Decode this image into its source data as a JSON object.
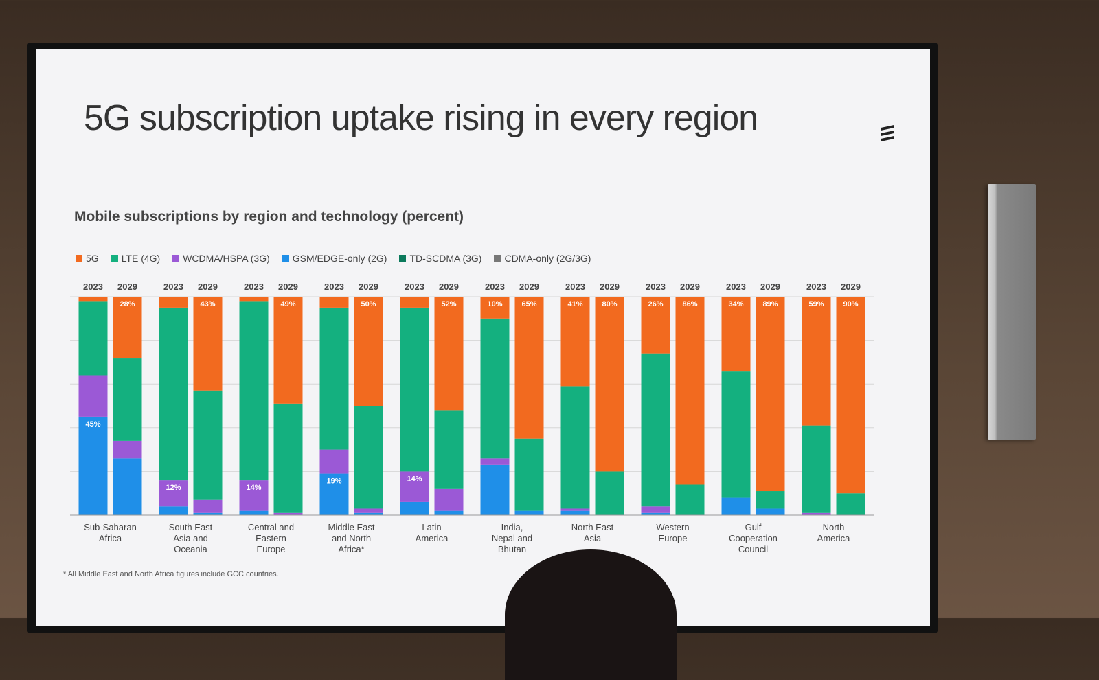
{
  "slide": {
    "title": "5G subscription uptake rising in every region",
    "subtitle": "Mobile subscriptions by region and technology (percent)",
    "footnote": "* All Middle East and North Africa figures include GCC countries."
  },
  "legend": [
    {
      "name": "5G",
      "color": "#f26a1f"
    },
    {
      "name": "LTE (4G)",
      "color": "#14b07f"
    },
    {
      "name": "WCDMA/HSPA (3G)",
      "color": "#9b59d6"
    },
    {
      "name": "GSM/EDGE-only (2G)",
      "color": "#1f8fe8"
    },
    {
      "name": "TD-SCDMA (3G)",
      "color": "#0b7a5c"
    },
    {
      "name": "CDMA-only (2G/3G)",
      "color": "#777777"
    }
  ],
  "chart_data": {
    "type": "bar",
    "stacked": true,
    "ylim": [
      0,
      100
    ],
    "grid": true,
    "legend_position": "top-left",
    "year_labels": [
      "2023",
      "2029"
    ],
    "stack_order": [
      "GSM/EDGE-only (2G)",
      "WCDMA/HSPA (3G)",
      "CDMA-only (2G/3G)",
      "TD-SCDMA (3G)",
      "LTE (4G)",
      "5G"
    ],
    "regions": [
      {
        "name": "Sub-Saharan\nAfrica",
        "bars": [
          {
            "year": "2023",
            "segments": {
              "GSM/EDGE-only (2G)": 45,
              "WCDMA/HSPA (3G)": 19,
              "LTE (4G)": 34,
              "5G": 2
            },
            "labels": {
              "GSM/EDGE-only (2G)": "45%"
            }
          },
          {
            "year": "2029",
            "segments": {
              "GSM/EDGE-only (2G)": 26,
              "WCDMA/HSPA (3G)": 8,
              "LTE (4G)": 38,
              "5G": 28
            },
            "labels": {
              "5G": "28%"
            }
          }
        ]
      },
      {
        "name": "South East\nAsia and\nOceania",
        "bars": [
          {
            "year": "2023",
            "segments": {
              "GSM/EDGE-only (2G)": 4,
              "WCDMA/HSPA (3G)": 12,
              "LTE (4G)": 79,
              "5G": 5
            },
            "labels": {
              "WCDMA/HSPA (3G)": "12%"
            }
          },
          {
            "year": "2029",
            "segments": {
              "GSM/EDGE-only (2G)": 1,
              "WCDMA/HSPA (3G)": 6,
              "LTE (4G)": 50,
              "5G": 43
            },
            "labels": {
              "5G": "43%"
            }
          }
        ]
      },
      {
        "name": "Central and\nEastern\nEurope",
        "bars": [
          {
            "year": "2023",
            "segments": {
              "GSM/EDGE-only (2G)": 2,
              "WCDMA/HSPA (3G)": 14,
              "LTE (4G)": 82,
              "5G": 2
            },
            "labels": {
              "WCDMA/HSPA (3G)": "14%"
            }
          },
          {
            "year": "2029",
            "segments": {
              "WCDMA/HSPA (3G)": 1,
              "LTE (4G)": 50,
              "5G": 49
            },
            "labels": {
              "5G": "49%"
            }
          }
        ]
      },
      {
        "name": "Middle East\nand North\nAfrica*",
        "bars": [
          {
            "year": "2023",
            "segments": {
              "GSM/EDGE-only (2G)": 19,
              "WCDMA/HSPA (3G)": 11,
              "LTE (4G)": 65,
              "5G": 5
            },
            "labels": {
              "GSM/EDGE-only (2G)": "19%"
            }
          },
          {
            "year": "2029",
            "segments": {
              "GSM/EDGE-only (2G)": 1,
              "WCDMA/HSPA (3G)": 2,
              "LTE (4G)": 47,
              "5G": 50
            },
            "labels": {
              "5G": "50%"
            }
          }
        ]
      },
      {
        "name": "Latin\nAmerica",
        "bars": [
          {
            "year": "2023",
            "segments": {
              "GSM/EDGE-only (2G)": 6,
              "WCDMA/HSPA (3G)": 14,
              "LTE (4G)": 75,
              "5G": 5
            },
            "labels": {
              "WCDMA/HSPA (3G)": "14%"
            }
          },
          {
            "year": "2029",
            "segments": {
              "GSM/EDGE-only (2G)": 2,
              "WCDMA/HSPA (3G)": 10,
              "LTE (4G)": 36,
              "5G": 52
            },
            "labels": {
              "5G": "52%"
            }
          }
        ]
      },
      {
        "name": "India,\nNepal and\nBhutan",
        "bars": [
          {
            "year": "2023",
            "segments": {
              "GSM/EDGE-only (2G)": 23,
              "WCDMA/HSPA (3G)": 3,
              "LTE (4G)": 64,
              "5G": 10
            },
            "labels": {
              "5G": "10%"
            }
          },
          {
            "year": "2029",
            "segments": {
              "GSM/EDGE-only (2G)": 2,
              "LTE (4G)": 33,
              "5G": 65
            },
            "labels": {
              "5G": "65%"
            }
          }
        ]
      },
      {
        "name": "North East\nAsia",
        "bars": [
          {
            "year": "2023",
            "segments": {
              "GSM/EDGE-only (2G)": 2,
              "WCDMA/HSPA (3G)": 1,
              "LTE (4G)": 56,
              "5G": 41
            },
            "labels": {
              "5G": "41%"
            }
          },
          {
            "year": "2029",
            "segments": {
              "LTE (4G)": 20,
              "5G": 80
            },
            "labels": {
              "5G": "80%"
            }
          }
        ]
      },
      {
        "name": "Western\nEurope",
        "bars": [
          {
            "year": "2023",
            "segments": {
              "GSM/EDGE-only (2G)": 1,
              "WCDMA/HSPA (3G)": 3,
              "LTE (4G)": 70,
              "5G": 26
            },
            "labels": {
              "5G": "26%"
            }
          },
          {
            "year": "2029",
            "segments": {
              "LTE (4G)": 14,
              "5G": 86
            },
            "labels": {
              "5G": "86%"
            }
          }
        ]
      },
      {
        "name": "Gulf\nCooperation\nCouncil",
        "bars": [
          {
            "year": "2023",
            "segments": {
              "GSM/EDGE-only (2G)": 8,
              "LTE (4G)": 58,
              "5G": 34
            },
            "labels": {
              "5G": "34%"
            }
          },
          {
            "year": "2029",
            "segments": {
              "GSM/EDGE-only (2G)": 3,
              "LTE (4G)": 8,
              "5G": 89
            },
            "labels": {
              "5G": "89%"
            }
          }
        ]
      },
      {
        "name": "North\nAmerica",
        "bars": [
          {
            "year": "2023",
            "segments": {
              "WCDMA/HSPA (3G)": 1,
              "LTE (4G)": 40,
              "5G": 59
            },
            "labels": {
              "5G": "59%"
            }
          },
          {
            "year": "2029",
            "segments": {
              "LTE (4G)": 10,
              "5G": 90
            },
            "labels": {
              "5G": "90%"
            }
          }
        ]
      }
    ]
  }
}
